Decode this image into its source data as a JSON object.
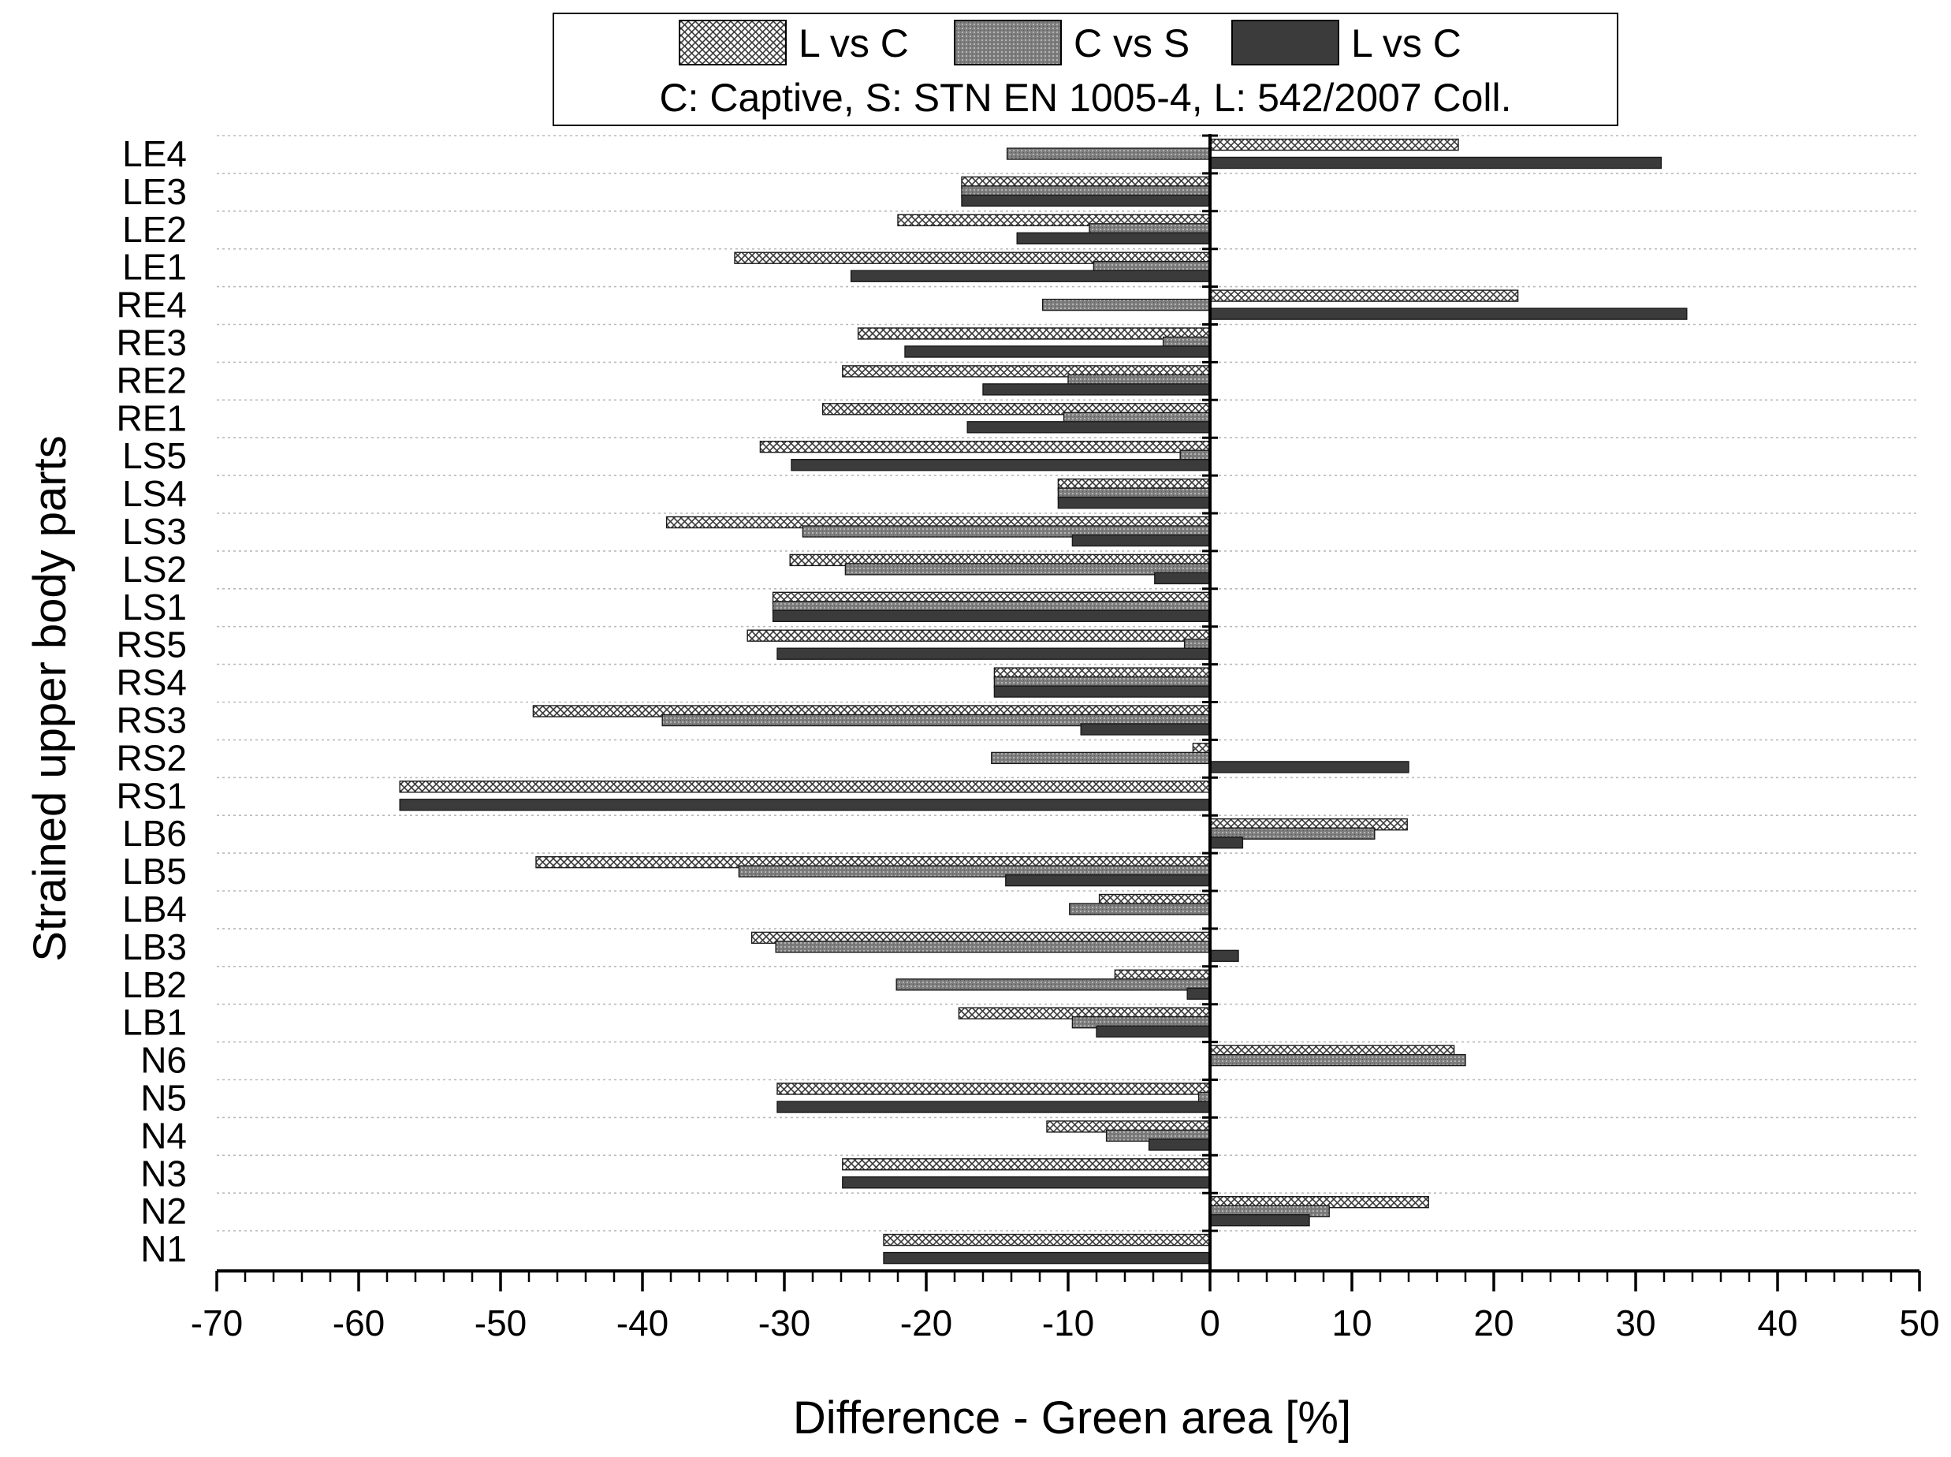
{
  "chart_data": {
    "type": "bar",
    "orientation": "horizontal",
    "title": "",
    "xlabel": "Difference - Green area [%]",
    "ylabel": "Strained upper body parts",
    "xlim": [
      -70,
      50
    ],
    "xticks": [
      -70,
      -60,
      -50,
      -40,
      -30,
      -20,
      -10,
      0,
      10,
      20,
      30,
      40,
      50
    ],
    "grid": "horizontal dotted",
    "legend": {
      "position": "top",
      "note": "C: Captive, S: STN EN 1005-4, L: 542/2007 Coll."
    },
    "categories": [
      "LE4",
      "LE3",
      "LE2",
      "LE1",
      "RE4",
      "RE3",
      "RE2",
      "RE1",
      "LS5",
      "LS4",
      "LS3",
      "LS2",
      "LS1",
      "RS5",
      "RS4",
      "RS3",
      "RS2",
      "RS1",
      "LB6",
      "LB5",
      "LB4",
      "LB3",
      "LB2",
      "LB1",
      "N6",
      "N5",
      "N4",
      "N3",
      "N2",
      "N1"
    ],
    "series": [
      {
        "name": "L vs C",
        "pattern": "crosshatch",
        "values": [
          17.5,
          -17.5,
          -22,
          -33.5,
          21.7,
          -24.8,
          -25.9,
          -27.3,
          -31.7,
          -10.7,
          -38.3,
          -29.6,
          -30.8,
          -32.6,
          -15.2,
          -47.7,
          -1.2,
          -57.1,
          13.9,
          -47.5,
          -7.8,
          -32.3,
          -6.7,
          -17.7,
          17.2,
          -30.5,
          -11.5,
          -25.9,
          15.4,
          -23
        ]
      },
      {
        "name": "C vs S",
        "pattern": "stipple",
        "values": [
          -14.3,
          -17.5,
          -8.5,
          -8.2,
          -11.8,
          -3.3,
          -10,
          -10.3,
          -2.1,
          -10.7,
          -28.7,
          -25.7,
          -30.8,
          -1.8,
          -15.2,
          -38.6,
          -15.4,
          0,
          11.6,
          -33.2,
          -9.9,
          -30.6,
          -22.1,
          -9.7,
          18,
          -0.8,
          -7.3,
          0,
          8.4,
          0
        ]
      },
      {
        "name": "L vs C",
        "pattern": "solid-dark",
        "values": [
          31.8,
          -17.5,
          -13.6,
          -25.3,
          33.6,
          -21.5,
          -16,
          -17.1,
          -29.5,
          -10.7,
          -9.7,
          -3.9,
          -30.8,
          -30.5,
          -15.2,
          -9.1,
          14,
          -57.1,
          2.3,
          -14.4,
          0,
          2,
          -1.6,
          -8,
          0,
          -30.5,
          -4.3,
          -25.9,
          7,
          -23
        ]
      }
    ]
  }
}
